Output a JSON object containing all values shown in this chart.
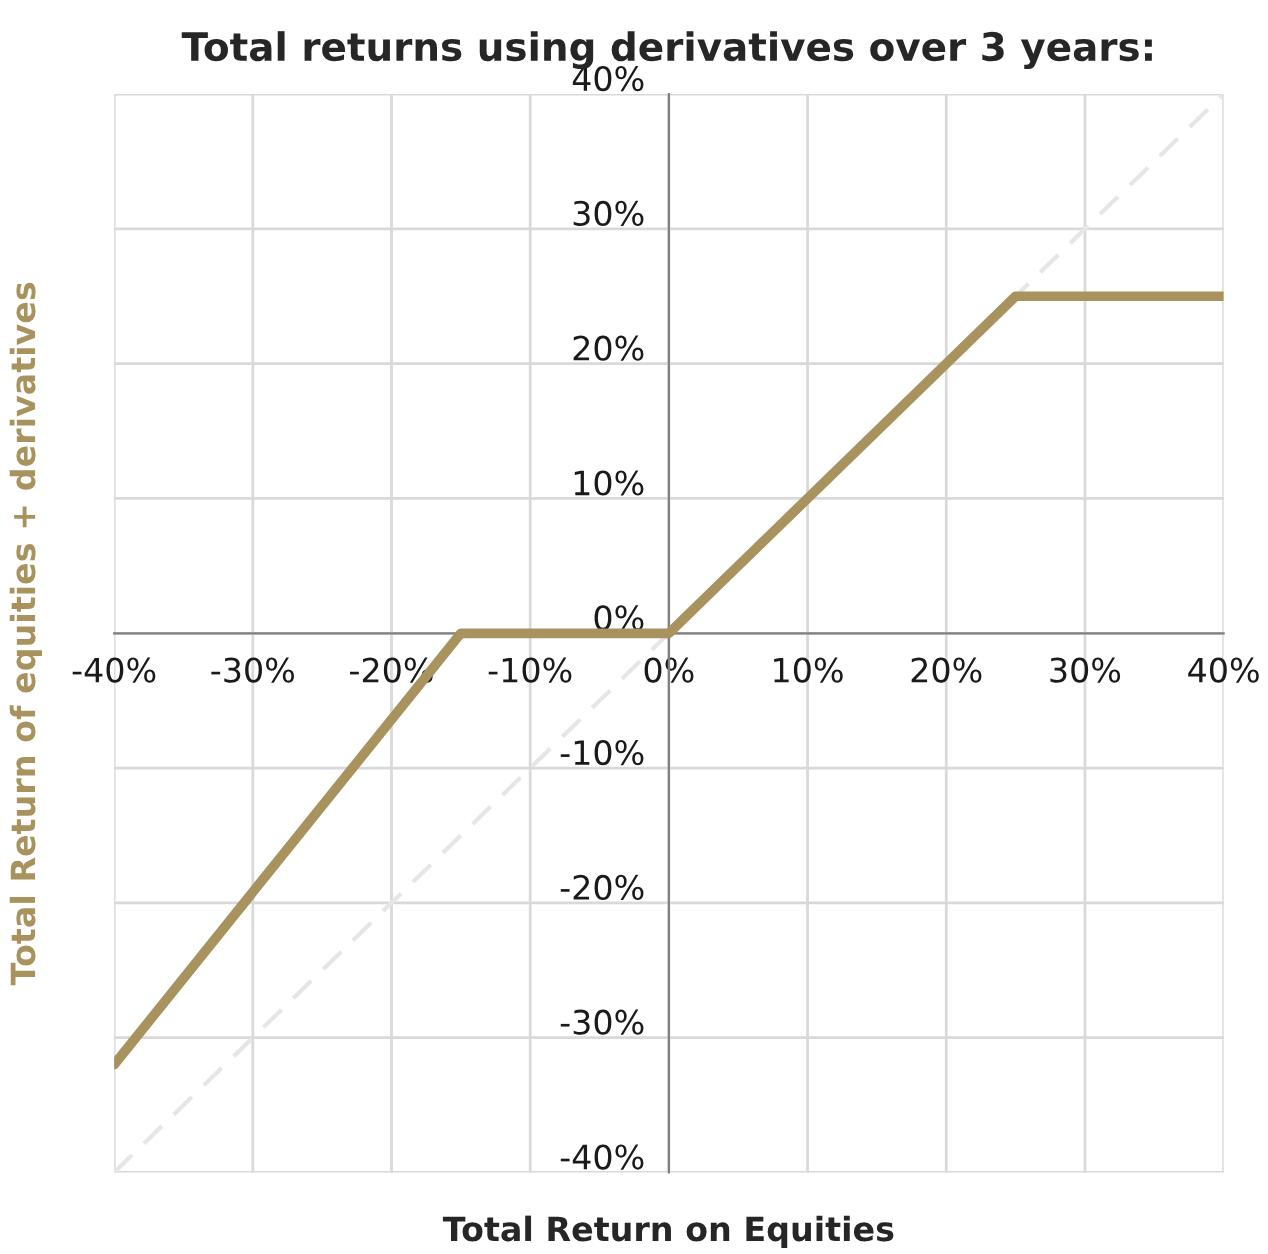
{
  "chart_data": {
    "type": "line",
    "title": "Total returns using derivatives over 3 years:",
    "xlabel": "Total Return on Equities",
    "ylabel": "Total Return of equities + derivatives",
    "xlim": [
      -40,
      40
    ],
    "ylim": [
      -40,
      40
    ],
    "xticks": [
      {
        "value": -40,
        "label": "-40%"
      },
      {
        "value": -30,
        "label": "-30%"
      },
      {
        "value": -20,
        "label": "-20%"
      },
      {
        "value": -10,
        "label": "-10%"
      },
      {
        "value": 0,
        "label": "0%"
      },
      {
        "value": 10,
        "label": "10%"
      },
      {
        "value": 20,
        "label": "20%"
      },
      {
        "value": 30,
        "label": "30%"
      },
      {
        "value": 40,
        "label": "40%"
      }
    ],
    "yticks": [
      {
        "value": -40,
        "label": "-40%"
      },
      {
        "value": -30,
        "label": "-30%"
      },
      {
        "value": -20,
        "label": "-20%"
      },
      {
        "value": -10,
        "label": "-10%"
      },
      {
        "value": 0,
        "label": "0%"
      },
      {
        "value": 10,
        "label": "10%"
      },
      {
        "value": 20,
        "label": "20%"
      },
      {
        "value": 30,
        "label": "30%"
      },
      {
        "value": 40,
        "label": "40%"
      }
    ],
    "grid": true,
    "legend": false,
    "series": [
      {
        "color": "#e6e6e6",
        "line_style": "dashed",
        "x": [
          -40,
          40
        ],
        "values": [
          -40,
          40
        ]
      },
      {
        "color": "#a8935f",
        "line_style": "solid",
        "x": [
          -40,
          -15,
          0,
          25,
          40
        ],
        "values": [
          -32,
          0,
          0,
          25,
          25
        ]
      }
    ]
  }
}
